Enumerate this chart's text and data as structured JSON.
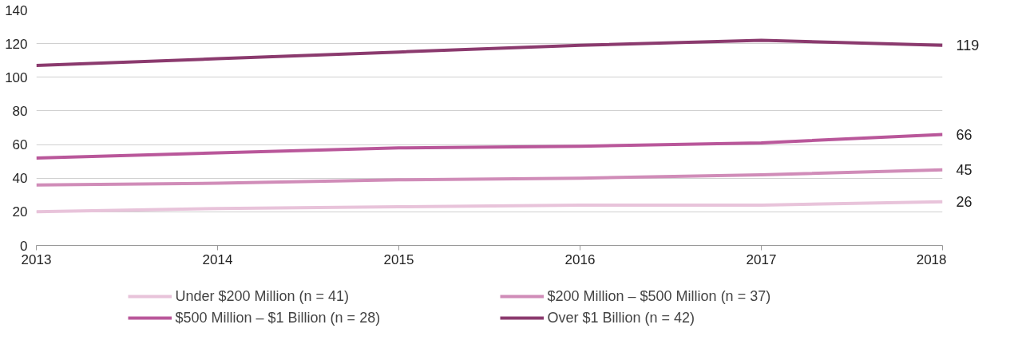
{
  "chart_data": {
    "type": "line",
    "x": [
      2013,
      2014,
      2015,
      2016,
      2017,
      2018
    ],
    "xlim": [
      2013,
      2018
    ],
    "xticks": [
      2013,
      2014,
      2015,
      2016,
      2017,
      2018
    ],
    "ylim": [
      0,
      140
    ],
    "yticks": [
      0,
      20,
      40,
      60,
      80,
      100,
      120,
      140
    ],
    "grid": "y",
    "legend": "bottom",
    "marker": "none",
    "line_style": "solid",
    "series": [
      {
        "name": "Under $200 Million (n = 41)",
        "color": "#e8c3da",
        "values": [
          20,
          22,
          23,
          24,
          24,
          26
        ],
        "value_labels": [
          null,
          null,
          null,
          null,
          null,
          "26"
        ]
      },
      {
        "name": "$200 Million – $500 Million (n = 37)",
        "color": "#d08cb8",
        "values": [
          36,
          37,
          39,
          40,
          42,
          45
        ],
        "value_labels": [
          null,
          null,
          null,
          null,
          null,
          "45"
        ]
      },
      {
        "name": "$500 Million – $1 Billion (n = 28)",
        "color": "#b9579a",
        "values": [
          52,
          55,
          58,
          59,
          61,
          66
        ],
        "value_labels": [
          null,
          null,
          null,
          null,
          null,
          "66"
        ]
      },
      {
        "name": "Over $1 Billion (n = 42)",
        "color": "#8b3a6e",
        "values": [
          107,
          111,
          115,
          119,
          122,
          119
        ],
        "value_labels": [
          null,
          null,
          null,
          null,
          null,
          "119"
        ]
      }
    ]
  }
}
